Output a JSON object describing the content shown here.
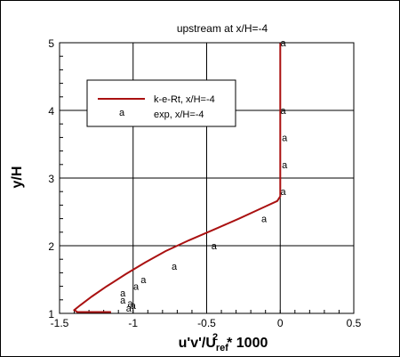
{
  "chart_data": {
    "type": "line",
    "title": "upstream at x/H=-4",
    "xlabel": {
      "main": "u'v'/U",
      "subscript": "ref",
      "superscript": "2",
      "suffix": "* 1000"
    },
    "ylabel": "y/H",
    "xlim": [
      -1.5,
      0.5
    ],
    "ylim": [
      1,
      5
    ],
    "x_ticks": [
      -1.5,
      -1,
      -0.5,
      0,
      0.5
    ],
    "x_tick_labels": [
      "-1.5",
      "-1",
      "-0.5",
      "0",
      "0.5"
    ],
    "y_ticks": [
      1,
      2,
      3,
      4,
      5
    ],
    "y_tick_labels": [
      "1",
      "2",
      "3",
      "4",
      "5"
    ],
    "grid": true,
    "legend_position": "upper-left",
    "series": [
      {
        "name": "k-e-Rt, x/H=-4",
        "kind": "line",
        "color": "#aa1111",
        "x": [
          -1.15,
          -1.38,
          -1.4,
          -1.36,
          -1.28,
          -1.18,
          -1.05,
          -0.92,
          -0.78,
          -0.62,
          -0.45,
          -0.28,
          -0.12,
          -0.02,
          0.0,
          0.0,
          0.0,
          0.0,
          0.0
        ],
        "y": [
          1.02,
          1.02,
          1.05,
          1.12,
          1.25,
          1.4,
          1.58,
          1.75,
          1.92,
          2.08,
          2.24,
          2.4,
          2.56,
          2.66,
          2.73,
          3.0,
          3.5,
          4.2,
          5.0
        ]
      },
      {
        "name": "exp, x/H=-4",
        "kind": "marker",
        "marker_label": "a",
        "color": "#000000",
        "x": [
          -1.03,
          -1.0,
          -1.02,
          -1.07,
          -1.07,
          -0.98,
          -0.93,
          -0.72,
          -0.45,
          -0.11,
          0.02,
          0.03,
          0.03,
          0.02,
          0.02
        ],
        "y": [
          1.08,
          1.12,
          1.15,
          1.2,
          1.3,
          1.4,
          1.5,
          1.7,
          2.0,
          2.4,
          2.8,
          3.2,
          3.6,
          4.0,
          5.0
        ]
      }
    ]
  }
}
